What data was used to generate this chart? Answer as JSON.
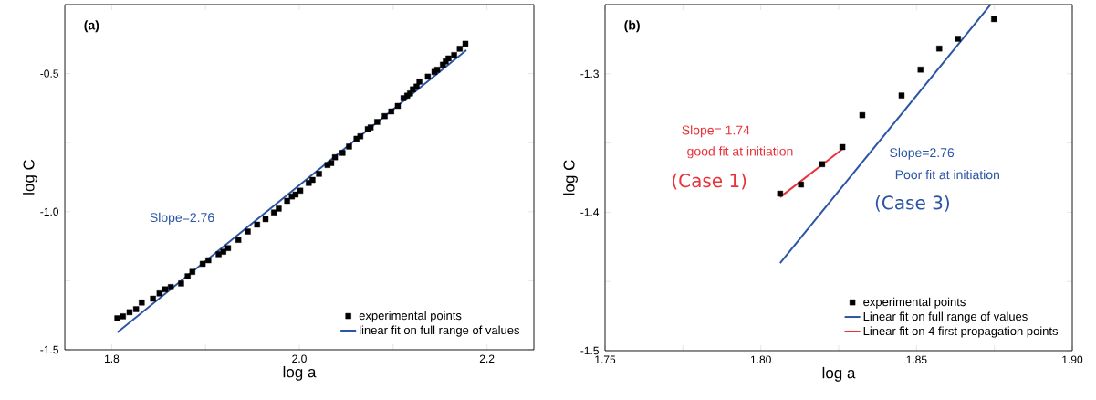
{
  "chart_data": [
    {
      "type": "scatter",
      "title": "(a)",
      "xlabel": "log a",
      "ylabel": "log C",
      "xlim": [
        1.75,
        2.25
      ],
      "ylim": [
        -1.5,
        -0.25
      ],
      "xticks": [
        {
          "value": 1.8,
          "label": "1.8"
        },
        {
          "value": 1.9,
          "label": null
        },
        {
          "value": 2.0,
          "label": "2.0"
        },
        {
          "value": 2.1,
          "label": null
        },
        {
          "value": 2.2,
          "label": "2.2"
        }
      ],
      "yticks": [
        {
          "value": -1.5,
          "label": "-1.5"
        },
        {
          "value": -1.25,
          "label": null
        },
        {
          "value": -1.0,
          "label": "-1.0"
        },
        {
          "value": -0.75,
          "label": null
        },
        {
          "value": -0.5,
          "label": "-0.5"
        }
      ],
      "legend": "bottom right",
      "annotations": [
        "Slope=2.76"
      ],
      "series": [
        {
          "name": "experimental points",
          "marker": "square",
          "color": "#000000",
          "x": [
            1.806,
            1.812,
            1.819,
            1.826,
            1.832,
            1.844,
            1.851,
            1.857,
            1.863,
            1.874,
            1.881,
            1.886,
            1.897,
            1.903,
            1.914,
            1.919,
            1.924,
            1.935,
            1.945,
            1.955,
            1.964,
            1.973,
            1.978,
            1.987,
            1.992,
            1.996,
            2.001,
            2.01,
            2.014,
            2.021,
            2.03,
            2.034,
            2.038,
            2.046,
            2.053,
            2.061,
            2.065,
            2.073,
            2.076,
            2.083,
            2.091,
            2.098,
            2.105,
            2.111,
            2.115,
            2.118,
            2.121,
            2.125,
            2.128,
            2.137,
            2.144,
            2.147,
            2.153,
            2.156,
            2.159,
            2.165,
            2.171,
            2.177
          ],
          "values": [
            -1.386,
            -1.379,
            -1.364,
            -1.353,
            -1.329,
            -1.315,
            -1.296,
            -1.281,
            -1.273,
            -1.26,
            -1.234,
            -1.218,
            -1.189,
            -1.176,
            -1.154,
            -1.145,
            -1.132,
            -1.102,
            -1.072,
            -1.047,
            -1.027,
            -1.003,
            -0.989,
            -0.961,
            -0.945,
            -0.938,
            -0.924,
            -0.896,
            -0.885,
            -0.863,
            -0.831,
            -0.824,
            -0.803,
            -0.787,
            -0.764,
            -0.736,
            -0.727,
            -0.701,
            -0.695,
            -0.675,
            -0.654,
            -0.637,
            -0.617,
            -0.589,
            -0.58,
            -0.572,
            -0.557,
            -0.547,
            -0.529,
            -0.511,
            -0.494,
            -0.486,
            -0.468,
            -0.456,
            -0.445,
            -0.433,
            -0.41,
            -0.392
          ]
        },
        {
          "name": "linear fit on full range of values",
          "type": "line",
          "color": "#2b55a5",
          "x": [
            1.806,
            2.178
          ],
          "values": [
            -1.437,
            -0.415
          ]
        }
      ]
    },
    {
      "type": "scatter",
      "title": "(b)",
      "xlabel": "log a",
      "ylabel": "log C",
      "xlim": [
        1.75,
        1.9
      ],
      "ylim": [
        -1.5,
        -1.25
      ],
      "xticks": [
        {
          "value": 1.75,
          "label": "1.75"
        },
        {
          "value": 1.775,
          "label": null
        },
        {
          "value": 1.8,
          "label": "1.80"
        },
        {
          "value": 1.825,
          "label": null
        },
        {
          "value": 1.85,
          "label": "1.85"
        },
        {
          "value": 1.875,
          "label": null
        },
        {
          "value": 1.9,
          "label": "1.90"
        }
      ],
      "yticks": [
        {
          "value": -1.5,
          "label": "-1.5"
        },
        {
          "value": -1.45,
          "label": null
        },
        {
          "value": -1.4,
          "label": "-1.4"
        },
        {
          "value": -1.35,
          "label": null
        },
        {
          "value": -1.3,
          "label": "-1.3"
        }
      ],
      "legend": "bottom right",
      "annotations": [
        "Slope= 1.74",
        "good fit at initiation",
        "(Case 1)",
        "Slope=2.76",
        "Poor fit at initiation",
        "(Case 3)"
      ],
      "series": [
        {
          "name": "experimental points",
          "marker": "square",
          "color": "#000000",
          "x": [
            1.8062,
            1.8129,
            1.8197,
            1.8262,
            1.8326,
            1.8452,
            1.8513,
            1.8573,
            1.8633,
            1.8749
          ],
          "values": [
            -1.3866,
            -1.38,
            -1.3653,
            -1.3529,
            -1.3299,
            -1.3157,
            -1.297,
            -1.2818,
            -1.2747,
            -1.2605
          ]
        },
        {
          "name": "Linear fit on full range of values",
          "type": "line",
          "color": "#2b55a5",
          "x": [
            1.8062,
            1.8738
          ],
          "values": [
            -1.4367,
            -1.25
          ]
        },
        {
          "name": "Linear fit on 4 first propagation points",
          "type": "line",
          "color": "#e8333a",
          "x": [
            1.8062,
            1.8262
          ],
          "values": [
            -1.3891,
            -1.3544
          ]
        }
      ]
    }
  ]
}
